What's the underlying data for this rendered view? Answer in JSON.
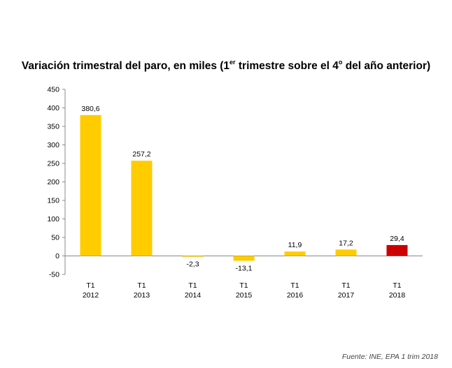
{
  "chart_data": {
    "type": "bar",
    "title": {
      "main": "Variación trimestral del paro, en miles  (1",
      "sup1": "er",
      "mid": " trimestre sobre el 4",
      "sup2": "o",
      "end": " del año anterior)"
    },
    "categories": [
      [
        "T1",
        "2012"
      ],
      [
        "T1",
        "2013"
      ],
      [
        "T1",
        "2014"
      ],
      [
        "T1",
        "2015"
      ],
      [
        "T1",
        "2016"
      ],
      [
        "T1",
        "2017"
      ],
      [
        "T1",
        "2018"
      ]
    ],
    "values": [
      380.6,
      257.2,
      -2.3,
      -13.1,
      11.9,
      17.2,
      29.4
    ],
    "data_labels": [
      "380,6",
      "257,2",
      "-2,3",
      "-13,1",
      "11,9",
      "17,2",
      "29,4"
    ],
    "bar_colors": [
      "#ffcc00",
      "#ffcc00",
      "#ffcc00",
      "#ffcc00",
      "#ffcc00",
      "#ffcc00",
      "#cc0000"
    ],
    "ylim": [
      -50,
      450
    ],
    "yticks": [
      -50,
      0,
      50,
      100,
      150,
      200,
      250,
      300,
      350,
      400,
      450
    ],
    "grid": false,
    "xlabel": "",
    "ylabel": ""
  },
  "source": "Fuente:  INE, EPA 1 trim 2018"
}
